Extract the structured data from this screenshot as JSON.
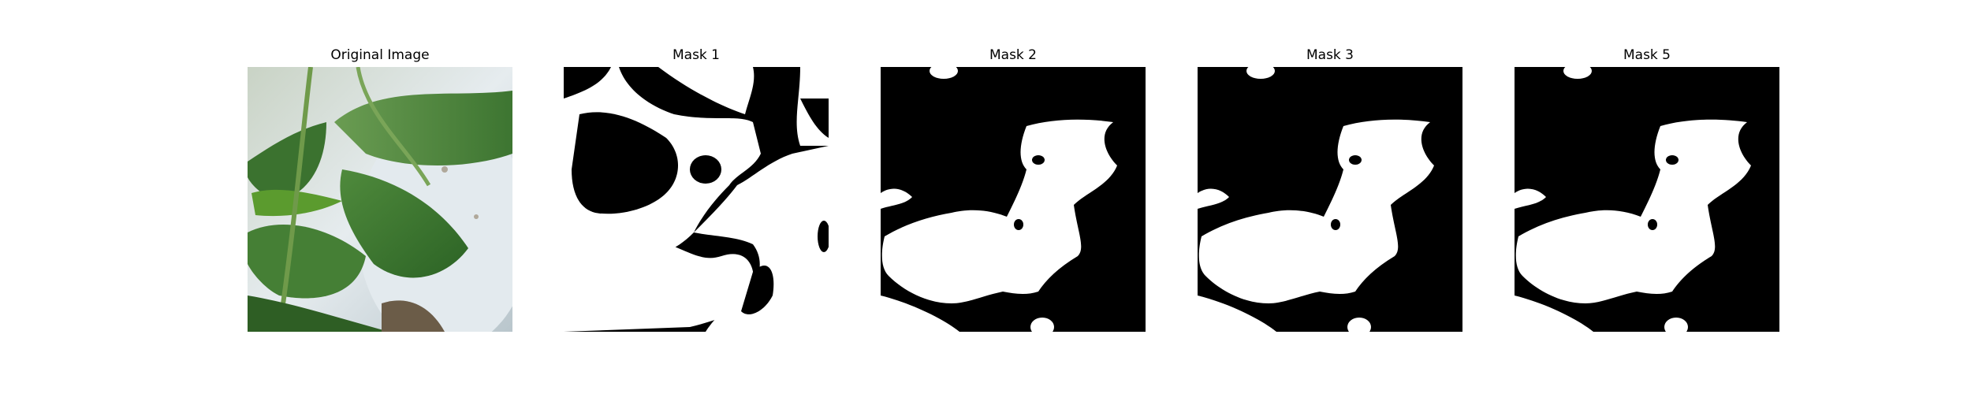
{
  "figure": {
    "panels": [
      {
        "title": "Original Image"
      },
      {
        "title": "Mask 1"
      },
      {
        "title": "Mask 2"
      },
      {
        "title": "Mask 3"
      },
      {
        "title": "Mask 5"
      }
    ]
  },
  "colors": {
    "mask_background": "#000000",
    "mask_foreground": "#ffffff",
    "leaf_dark": "#2f6b2a",
    "leaf_mid": "#4f8a3c",
    "leaf_light": "#8fb87a",
    "pepper": "#5b9b2e",
    "backdrop": "#dfe7ec"
  }
}
